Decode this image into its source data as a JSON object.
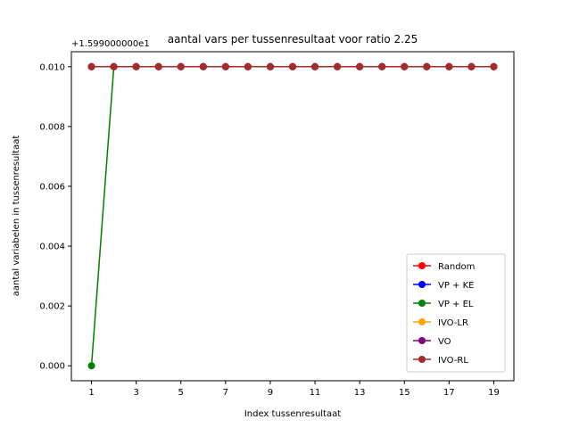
{
  "chart_data": {
    "type": "line",
    "title": "aantal vars per tussenresultaat voor ratio 2.25",
    "xlabel": "Index tussenresultaat",
    "ylabel": "aantal variabelen in tussenresultaat",
    "y_offset_label": "+1.599000000e1",
    "x": [
      1,
      2,
      3,
      4,
      5,
      6,
      7,
      8,
      9,
      10,
      11,
      12,
      13,
      14,
      15,
      16,
      17,
      18,
      19
    ],
    "xlim": [
      0.1,
      19.9
    ],
    "ylim": [
      -0.0005,
      0.0105
    ],
    "x_ticks": [
      1,
      3,
      5,
      7,
      9,
      11,
      13,
      15,
      17,
      19
    ],
    "y_ticks": [
      0.0,
      0.002,
      0.004,
      0.006,
      0.008,
      0.01
    ],
    "y_tick_labels": [
      "0.000",
      "0.002",
      "0.004",
      "0.006",
      "0.008",
      "0.010"
    ],
    "grid": false,
    "legend_position": "lower-right",
    "series": [
      {
        "name": "Random",
        "color": "#ff0000",
        "values": [
          0.01,
          0.01,
          0.01,
          0.01,
          0.01,
          0.01,
          0.01,
          0.01,
          0.01,
          0.01,
          0.01,
          0.01,
          0.01,
          0.01,
          0.01,
          0.01,
          0.01,
          0.01,
          0.01
        ]
      },
      {
        "name": "VP + KE",
        "color": "#0000ff",
        "values": [
          0.01,
          0.01,
          0.01,
          0.01,
          0.01,
          0.01,
          0.01,
          0.01,
          0.01,
          0.01,
          0.01,
          0.01,
          0.01,
          0.01,
          0.01,
          0.01,
          0.01,
          0.01,
          0.01
        ]
      },
      {
        "name": "VP + EL",
        "color": "#008000",
        "values": [
          0.0,
          0.01,
          0.01,
          0.01,
          0.01,
          0.01,
          0.01,
          0.01,
          0.01,
          0.01,
          0.01,
          0.01,
          0.01,
          0.01,
          0.01,
          0.01,
          0.01,
          0.01,
          0.01
        ]
      },
      {
        "name": "IVO-LR",
        "color": "#ffa500",
        "values": [
          0.01,
          0.01,
          0.01,
          0.01,
          0.01,
          0.01,
          0.01,
          0.01,
          0.01,
          0.01,
          0.01,
          0.01,
          0.01,
          0.01,
          0.01,
          0.01,
          0.01,
          0.01,
          0.01
        ]
      },
      {
        "name": "VO",
        "color": "#800080",
        "values": [
          0.01,
          0.01,
          0.01,
          0.01,
          0.01,
          0.01,
          0.01,
          0.01,
          0.01,
          0.01,
          0.01,
          0.01,
          0.01,
          0.01,
          0.01,
          0.01,
          0.01,
          0.01,
          0.01
        ]
      },
      {
        "name": "IVO-RL",
        "color": "#a52a2a",
        "values": [
          0.01,
          0.01,
          0.01,
          0.01,
          0.01,
          0.01,
          0.01,
          0.01,
          0.01,
          0.01,
          0.01,
          0.01,
          0.01,
          0.01,
          0.01,
          0.01,
          0.01,
          0.01,
          0.01
        ]
      }
    ]
  }
}
